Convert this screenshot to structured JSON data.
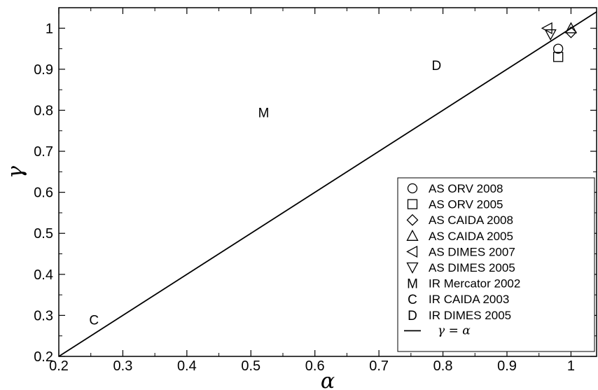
{
  "chart_data": {
    "type": "scatter",
    "title": "",
    "xlabel": "α",
    "ylabel": "γ",
    "xlim": [
      0.2,
      1.04
    ],
    "ylim": [
      0.2,
      1.05
    ],
    "xticks": [
      0.2,
      0.3,
      0.4,
      0.5,
      0.6,
      0.7,
      0.8,
      0.9,
      1
    ],
    "yticks": [
      0.2,
      0.3,
      0.4,
      0.5,
      0.6,
      0.7,
      0.8,
      0.9,
      1
    ],
    "xtick_labels": [
      "0.2",
      "0.3",
      "0.4",
      "0.5",
      "0.6",
      "0.7",
      "0.8",
      "0.9",
      "1"
    ],
    "ytick_labels": [
      "0.2",
      "0.3",
      "0.4",
      "0.5",
      "0.6",
      "0.7",
      "0.8",
      "0.9",
      "1"
    ],
    "grid": false,
    "legend_position": "bottom-right",
    "series": [
      {
        "name": "AS ORV 2008",
        "marker": "circle",
        "x": [
          0.98
        ],
        "y": [
          0.95
        ]
      },
      {
        "name": "AS ORV 2005",
        "marker": "square",
        "x": [
          0.98
        ],
        "y": [
          0.93
        ]
      },
      {
        "name": "AS CAIDA 2008",
        "marker": "diamond",
        "x": [
          1.0
        ],
        "y": [
          0.99
        ]
      },
      {
        "name": "AS CAIDA 2005",
        "marker": "triangle-up",
        "x": [
          1.0
        ],
        "y": [
          1.0
        ]
      },
      {
        "name": "AS DIMES 2007",
        "marker": "triangle-left",
        "x": [
          0.963
        ],
        "y": [
          1.0
        ]
      },
      {
        "name": "AS DIMES 2005",
        "marker": "triangle-down",
        "x": [
          0.968
        ],
        "y": [
          0.985
        ]
      },
      {
        "name": "IR Mercator 2002",
        "marker": "M",
        "x": [
          0.52
        ],
        "y": [
          0.795
        ]
      },
      {
        "name": "IR CAIDA 2003",
        "marker": "C",
        "x": [
          0.255
        ],
        "y": [
          0.29
        ]
      },
      {
        "name": "IR DIMES 2005",
        "marker": "D",
        "x": [
          0.79
        ],
        "y": [
          0.91
        ]
      }
    ],
    "reference_line": {
      "name": "γ = α",
      "x": [
        0.2,
        1.04
      ],
      "y": [
        0.2,
        1.04
      ]
    }
  }
}
